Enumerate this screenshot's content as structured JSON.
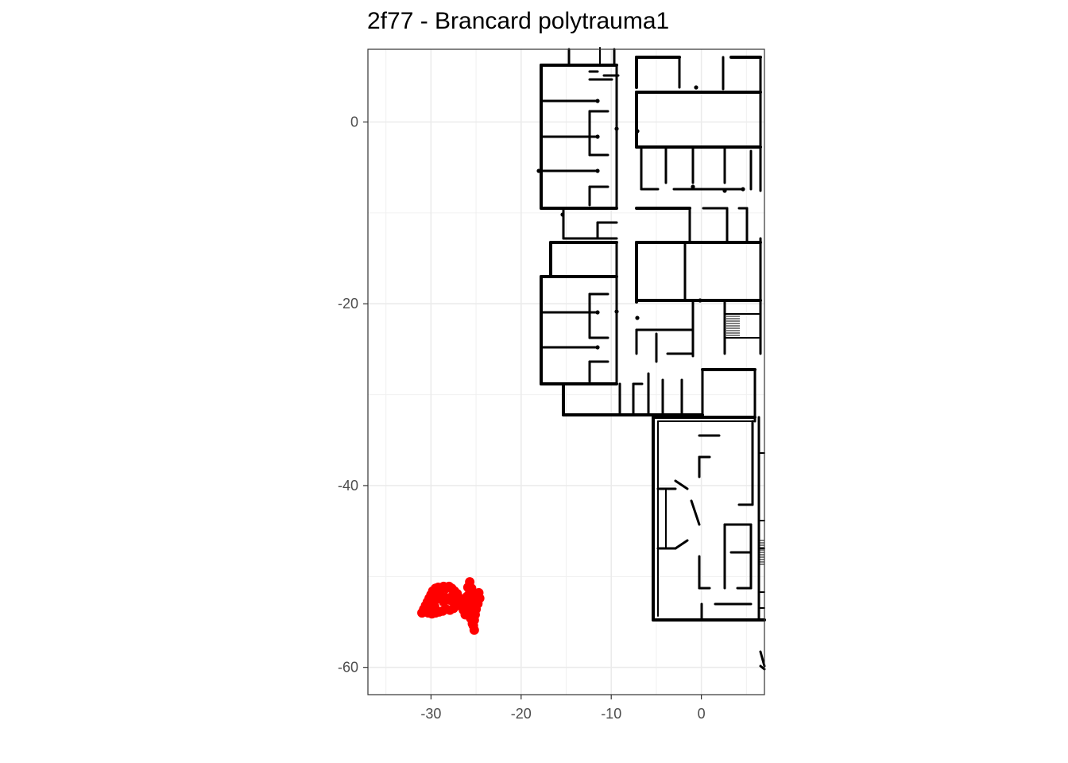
{
  "title": "2f77 - Brancard polytrauma1",
  "chart_data": {
    "type": "scatter",
    "title": "2f77 - Brancard polytrauma1",
    "xlabel": "",
    "ylabel": "",
    "xlim": [
      -37,
      7
    ],
    "ylim": [
      -63,
      8
    ],
    "x_ticks": [
      -30,
      -20,
      -10,
      0
    ],
    "y_ticks": [
      0,
      -20,
      -40,
      -60
    ],
    "x_tick_labels": [
      "-30",
      "-20",
      "-10",
      "0"
    ],
    "y_tick_labels": [
      "0",
      "-20",
      "-40",
      "-60"
    ],
    "grid": true,
    "legend": "none",
    "point_color": "#ff0000",
    "series": [
      {
        "points": [
          [
            -31.0,
            -54.0
          ],
          [
            -30.8,
            -53.6
          ],
          [
            -30.6,
            -53.2
          ],
          [
            -30.4,
            -52.8
          ],
          [
            -30.2,
            -52.4
          ],
          [
            -30.0,
            -52.0
          ],
          [
            -29.8,
            -51.6
          ],
          [
            -29.5,
            -51.3
          ],
          [
            -29.2,
            -51.2
          ],
          [
            -28.9,
            -51.4
          ],
          [
            -28.6,
            -51.1
          ],
          [
            -28.3,
            -51.3
          ],
          [
            -28.0,
            -51.1
          ],
          [
            -27.7,
            -51.3
          ],
          [
            -27.4,
            -51.6
          ],
          [
            -27.1,
            -51.9
          ],
          [
            -26.8,
            -52.4
          ],
          [
            -26.6,
            -53.0
          ],
          [
            -26.4,
            -53.7
          ],
          [
            -26.2,
            -54.2
          ],
          [
            -26.0,
            -53.6
          ],
          [
            -25.9,
            -52.8
          ],
          [
            -25.8,
            -52.0
          ],
          [
            -25.9,
            -51.2
          ],
          [
            -25.7,
            -50.6
          ],
          [
            -25.5,
            -51.3
          ],
          [
            -25.3,
            -52.0
          ],
          [
            -25.1,
            -52.6
          ],
          [
            -24.9,
            -52.2
          ],
          [
            -24.7,
            -51.8
          ],
          [
            -24.6,
            -52.4
          ],
          [
            -24.8,
            -53.0
          ],
          [
            -25.0,
            -53.6
          ],
          [
            -25.1,
            -54.2
          ],
          [
            -25.2,
            -54.8
          ],
          [
            -25.3,
            -55.4
          ],
          [
            -25.2,
            -55.9
          ],
          [
            -25.4,
            -55.2
          ],
          [
            -25.6,
            -54.6
          ],
          [
            -25.5,
            -53.9
          ],
          [
            -25.4,
            -53.2
          ],
          [
            -25.7,
            -52.6
          ],
          [
            -26.0,
            -52.2
          ],
          [
            -26.3,
            -52.6
          ],
          [
            -26.7,
            -52.9
          ],
          [
            -27.1,
            -53.2
          ],
          [
            -27.5,
            -53.5
          ],
          [
            -27.9,
            -53.7
          ],
          [
            -28.3,
            -53.6
          ],
          [
            -28.7,
            -53.8
          ],
          [
            -29.1,
            -53.9
          ],
          [
            -29.5,
            -54.0
          ],
          [
            -29.9,
            -54.1
          ],
          [
            -30.3,
            -54.0
          ],
          [
            -30.7,
            -53.9
          ],
          [
            -30.4,
            -53.4
          ],
          [
            -29.9,
            -52.9
          ],
          [
            -29.4,
            -52.5
          ],
          [
            -28.9,
            -52.2
          ],
          [
            -28.4,
            -52.3
          ],
          [
            -27.9,
            -52.6
          ],
          [
            -27.4,
            -52.9
          ],
          [
            -26.9,
            -53.1
          ],
          [
            -29.6,
            -53.3
          ],
          [
            -28.6,
            -52.8
          ],
          [
            -27.6,
            -52.1
          ],
          [
            -29.0,
            -51.8
          ],
          [
            -25.8,
            -53.1
          ],
          [
            -25.0,
            -53.0
          ],
          [
            -25.6,
            -54.1
          ]
        ]
      }
    ]
  }
}
